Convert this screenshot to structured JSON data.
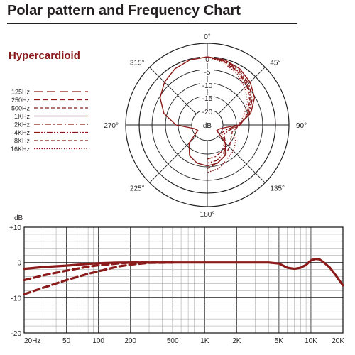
{
  "header": {
    "title": "Polar pattern and Frequency Chart",
    "pattern_label": "Hypercardioid"
  },
  "colors": {
    "accent": "#8b1a1a",
    "grid": "#231f20",
    "grid_light": "#999999"
  },
  "chart_data": [
    {
      "type": "polar",
      "angle_labels": [
        "0°",
        "45°",
        "90°",
        "135°",
        "180°",
        "225°",
        "270°",
        "315°"
      ],
      "radial_labels": [
        "0",
        "-5",
        "-10",
        "-15",
        "-20",
        "dB"
      ],
      "legend": [
        "125Hz",
        "250Hz",
        "500Hz",
        "1KHz",
        "2KHz",
        "4KHz",
        "8KHz",
        "16KHz"
      ],
      "legend_styles": [
        "12,6",
        "8,4",
        "5,3",
        "",
        "8,3,2,3",
        "8,2,2,2,2,2",
        "5,3",
        "1.5,2"
      ],
      "rlim": [
        -25,
        0
      ],
      "series": [
        {
          "name": "1KHz",
          "angle_deg": [
            0,
            15,
            30,
            45,
            60,
            75,
            90,
            105,
            120,
            135,
            150,
            165,
            180,
            195,
            210,
            225,
            240,
            255,
            270,
            285,
            300,
            315,
            330,
            345
          ],
          "db": [
            0,
            -0.3,
            -1.2,
            -2.8,
            -5,
            -8.5,
            -13.5,
            -20,
            -21,
            -15.5,
            -12,
            -10.5,
            -10,
            -10.5,
            -12,
            -15.5,
            -21,
            -20,
            -13.5,
            -8.5,
            -5,
            -2.8,
            -1.2,
            -0.3
          ]
        },
        {
          "name": "2KHz",
          "angle_deg": [
            0,
            15,
            30,
            45,
            60,
            75,
            90,
            105,
            120,
            135,
            150,
            165,
            180
          ],
          "db": [
            0,
            -0.5,
            -1.8,
            -3.5,
            -6,
            -9,
            -13.5,
            -18,
            -19,
            -16,
            -14,
            -13,
            -12.5
          ]
        },
        {
          "name": "4KHz",
          "angle_deg": [
            0,
            15,
            30,
            45,
            60,
            75,
            90,
            105,
            120,
            135,
            150,
            165,
            180
          ],
          "db": [
            0,
            -0.8,
            -2.3,
            -4,
            -6.5,
            -9.5,
            -13,
            -17,
            -18,
            -15.5,
            -13,
            -11.5,
            -11
          ]
        },
        {
          "name": "8KHz",
          "angle_deg": [
            0,
            15,
            30,
            45,
            60,
            75,
            90,
            105,
            120,
            135,
            150,
            165,
            180
          ],
          "db": [
            0,
            -1,
            -2.6,
            -4.5,
            -7,
            -10,
            -13,
            -15.5,
            -15,
            -13.5,
            -12,
            -10.5,
            -9
          ]
        },
        {
          "name": "16KHz",
          "angle_deg": [
            0,
            15,
            30,
            45,
            60,
            75,
            90,
            105,
            120,
            135,
            150,
            165,
            180
          ],
          "db": [
            0,
            -1.5,
            -3.2,
            -5.5,
            -8,
            -11,
            -13.5,
            -15,
            -13,
            -11.5,
            -10.5,
            -8.5,
            -7.5
          ]
        }
      ]
    },
    {
      "type": "line",
      "ylabel": "dB",
      "y_ticks": [
        "+10",
        "0",
        "-10",
        "-20"
      ],
      "y_tick_values": [
        10,
        0,
        -10,
        -20
      ],
      "ylim": [
        -20,
        10
      ],
      "x_scale": "log",
      "xlim": [
        20,
        20000
      ],
      "x_ticks": [
        "20Hz",
        "50",
        "100",
        "200",
        "500",
        "1K",
        "2K",
        "5K",
        "10K",
        "20K"
      ],
      "x_tick_values": [
        20,
        50,
        100,
        200,
        500,
        1000,
        2000,
        5000,
        10000,
        20000
      ],
      "grid": true,
      "series": [
        {
          "x": [
            20,
            30,
            50,
            80,
            100,
            150,
            200,
            300,
            500,
            1000,
            2000,
            4000,
            5000,
            6000,
            7000,
            8000,
            9000,
            10000,
            11000,
            12000,
            13000,
            15000,
            17000,
            20000
          ],
          "y": [
            -1.8,
            -1.3,
            -0.9,
            -0.4,
            -0.2,
            -0.05,
            0,
            0,
            0,
            0,
            0,
            0,
            -0.3,
            -1.5,
            -1.8,
            -1.5,
            -0.7,
            0.6,
            1,
            0.9,
            0.2,
            -1.4,
            -3.5,
            -6.5
          ]
        },
        {
          "x": [
            20,
            30,
            50,
            80,
            100,
            150,
            200,
            300,
            500
          ],
          "y": [
            -5,
            -3.7,
            -2.3,
            -1.2,
            -0.8,
            -0.3,
            0,
            0,
            0
          ]
        },
        {
          "x": [
            20,
            30,
            50,
            80,
            100,
            150,
            200,
            300,
            500
          ],
          "y": [
            -9,
            -7.2,
            -5,
            -3.2,
            -2.5,
            -1.2,
            -0.6,
            -0.1,
            0
          ]
        }
      ],
      "series_styles": [
        "",
        "9,5",
        "9,5"
      ]
    }
  ]
}
